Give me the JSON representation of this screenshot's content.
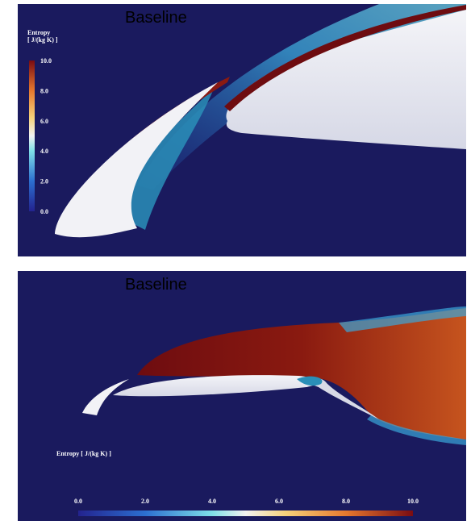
{
  "panels": [
    {
      "title": "Baseline",
      "colorbar": {
        "title": "Entropy",
        "unit": "[ J/(kg K) ]",
        "ticks": [
          "10.0",
          "8.0",
          "6.0",
          "4.0",
          "2.0",
          "0.0"
        ]
      }
    },
    {
      "title": "Baseline",
      "colorbar": {
        "title": "Entropy [ J/(kg K) ]",
        "ticks": [
          "0.0",
          "2.0",
          "4.0",
          "6.0",
          "8.0",
          "10.0"
        ]
      }
    }
  ]
}
